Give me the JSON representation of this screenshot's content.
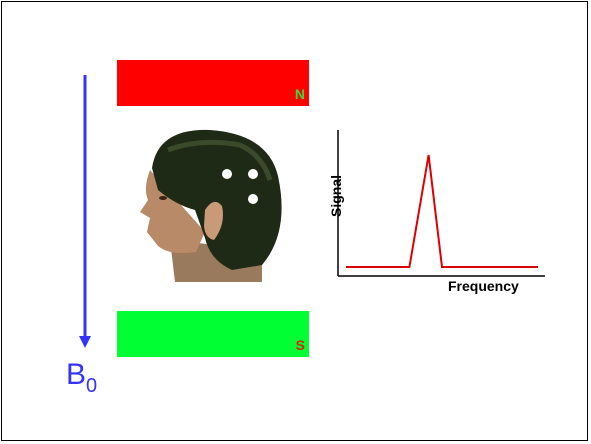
{
  "magnets": {
    "north_label": "N",
    "south_label": "S",
    "north_color": "#ff0000",
    "south_color": "#00ff33"
  },
  "field": {
    "label_main": "B",
    "label_sub": "0",
    "arrow_color": "#3333ff"
  },
  "head": {
    "depicted": "person-head-side-profile",
    "dot_count": 3
  },
  "chart_data": {
    "type": "line",
    "xlabel": "Frequency",
    "ylabel": "Signal",
    "series": [
      {
        "color": "#dd0000",
        "x": [
          0,
          0.33,
          0.43,
          0.5,
          1.0
        ],
        "y": [
          0.04,
          0.04,
          1.0,
          0.04,
          0.04
        ]
      }
    ]
  }
}
